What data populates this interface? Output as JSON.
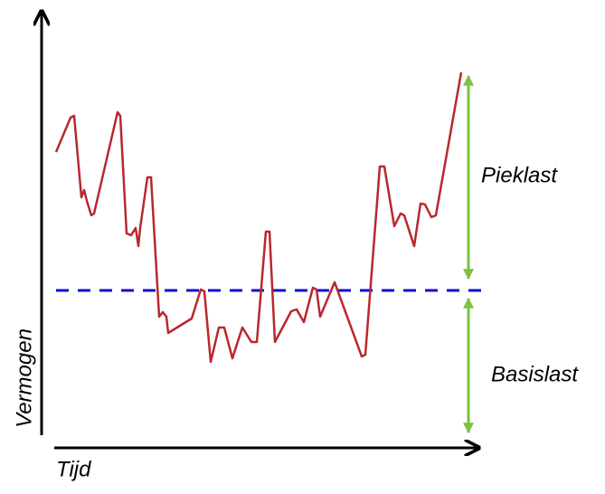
{
  "y_axis_label": "Vermogen",
  "x_axis_label": "Tijd",
  "annotations": {
    "peak": "Pieklast",
    "base": "Basislast"
  }
}
